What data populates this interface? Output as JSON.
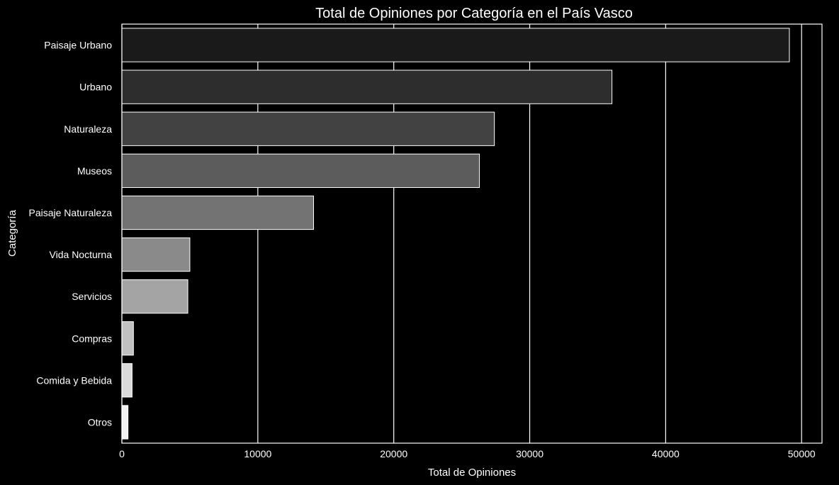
{
  "chart_data": {
    "type": "bar",
    "orientation": "horizontal",
    "title": "Total de Opiniones por Categoría en el País Vasco",
    "xlabel": "Total de Opiniones",
    "ylabel": "Categoría",
    "xlim": [
      0,
      51500
    ],
    "xticks": [
      0,
      10000,
      20000,
      30000,
      40000,
      50000
    ],
    "grid": "vertical",
    "categories": [
      "Paisaje Urbano",
      "Urbano",
      "Naturaleza",
      "Museos",
      "Paisaje Naturaleza",
      "Vida Nocturna",
      "Servicios",
      "Compras",
      "Comida y Bebida",
      "Otros"
    ],
    "values": [
      49100,
      36050,
      27400,
      26300,
      14100,
      5000,
      4850,
      850,
      750,
      450
    ],
    "colors": [
      "#1a1a1a",
      "#2d2d2d",
      "#424242",
      "#5c5c5c",
      "#737373",
      "#8a8a8a",
      "#a4a4a4",
      "#c1c1c1",
      "#dbdbdb",
      "#f2f2f2"
    ],
    "edge_color": "#ffffff",
    "background": "#000000",
    "text_color": "#ffffff"
  }
}
